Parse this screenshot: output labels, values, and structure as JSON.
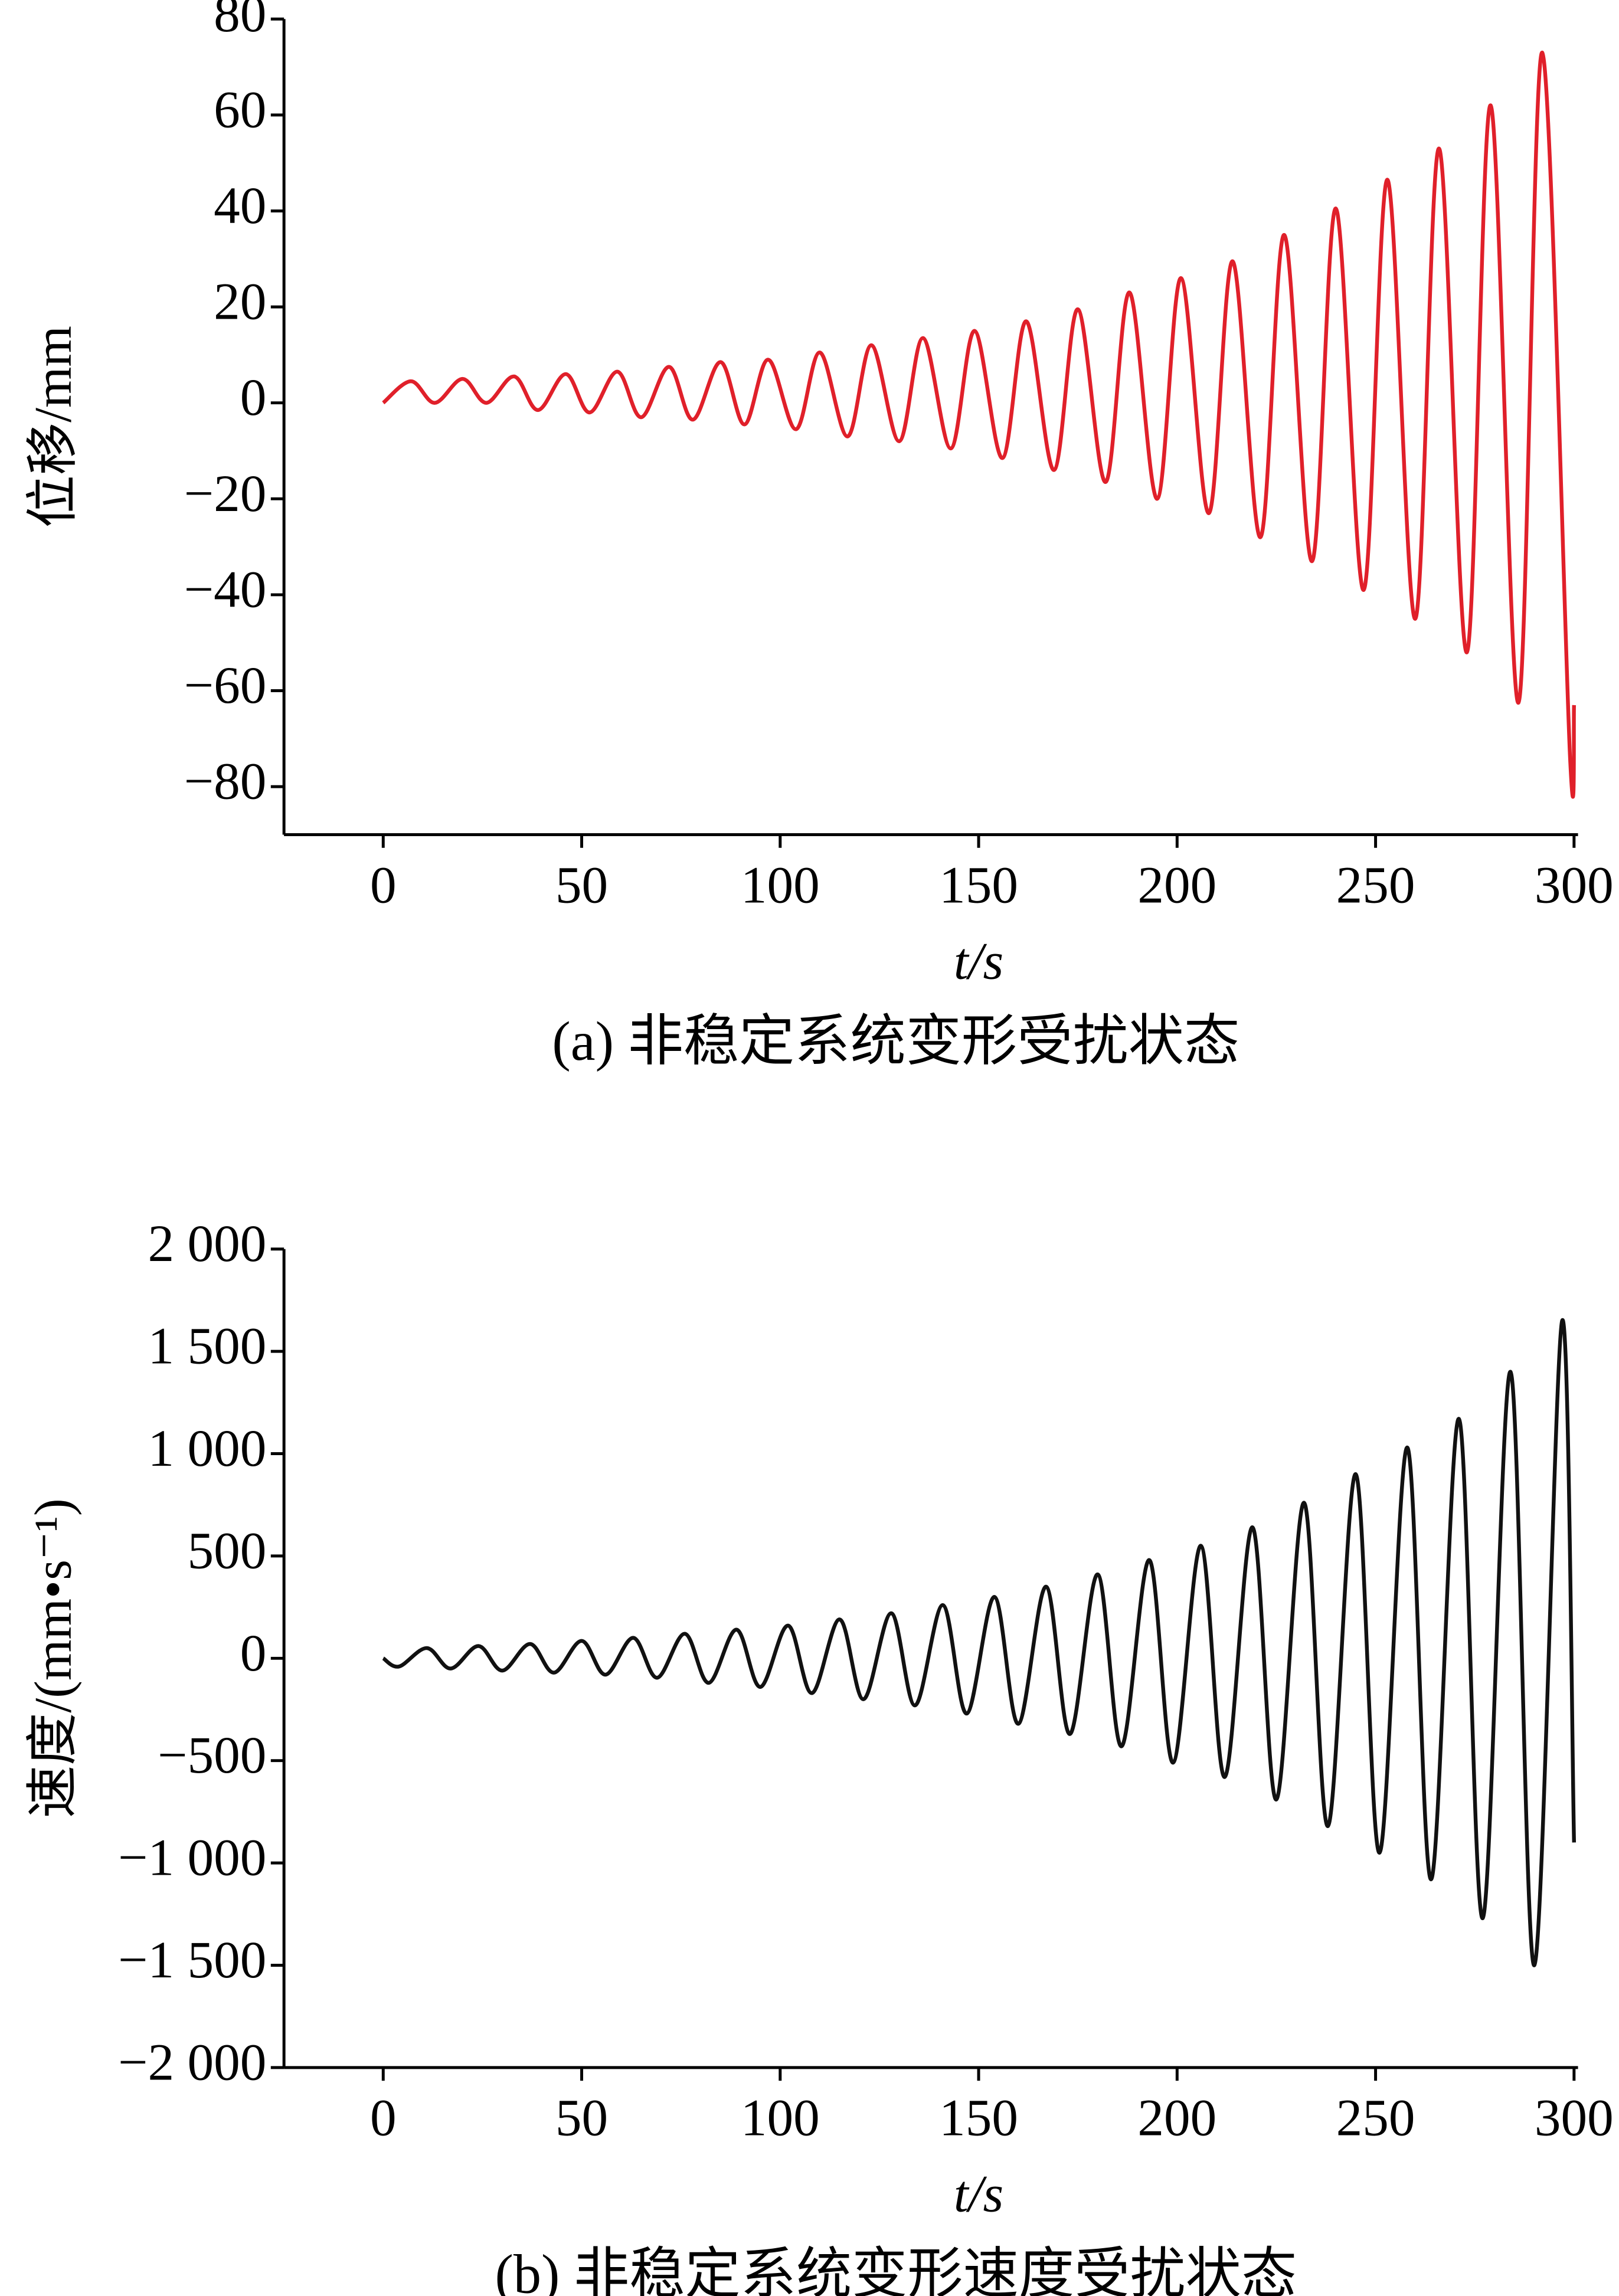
{
  "chart_data": [
    {
      "type": "line",
      "caption": "(a) 非稳定系统变形受扰状态",
      "xlabel": "t/s",
      "ylabel": "位移/mm",
      "xlim": [
        -25,
        301
      ],
      "xticks": [
        0,
        50,
        100,
        150,
        200,
        250,
        300
      ],
      "ylim": [
        -90,
        80
      ],
      "yticks": [
        {
          "value": -80,
          "label": "−80"
        },
        {
          "value": -60,
          "label": "−60"
        },
        {
          "value": -40,
          "label": "−40"
        },
        {
          "value": -20,
          "label": "−20"
        },
        0,
        20,
        40,
        60,
        80
      ],
      "series": [
        {
          "name": "位移",
          "color": "#e0202a",
          "x": [
            0,
            7,
            13,
            20,
            26,
            33,
            39,
            46,
            52,
            59,
            65,
            72,
            78,
            85,
            91,
            97,
            104,
            110,
            117,
            123,
            130,
            136,
            143,
            149,
            156,
            162,
            169,
            175,
            182,
            188,
            195,
            201,
            208,
            214,
            221,
            227,
            234,
            240,
            247,
            253,
            260,
            266,
            273,
            279,
            286,
            292,
            299,
            300
          ],
          "values": [
            0,
            4.5,
            0,
            5,
            0,
            5.5,
            -1.5,
            6,
            -2,
            6.5,
            -3,
            7.5,
            -3.5,
            8.5,
            -4.5,
            9,
            -5.5,
            10.5,
            -7,
            12,
            -8,
            13.5,
            -9.5,
            15,
            -11.5,
            17,
            -14,
            19.5,
            -16.5,
            23,
            -20,
            26,
            -23,
            29.5,
            -28,
            35,
            -33,
            40.5,
            -39,
            46.5,
            -45,
            53,
            -52,
            62,
            -62.5,
            73,
            -74,
            -63
          ]
        }
      ]
    },
    {
      "type": "line",
      "caption": "(b) 非稳定系统变形速度受扰状态",
      "xlabel": "t/s",
      "ylabel": "速度/(mm•s⁻¹)",
      "xlim": [
        -25,
        301
      ],
      "xticks": [
        0,
        50,
        100,
        150,
        200,
        250,
        300
      ],
      "ylim": [
        -2000,
        2000
      ],
      "yticks": [
        {
          "value": -2000,
          "label": "−2 000"
        },
        {
          "value": -1500,
          "label": "−1 500"
        },
        {
          "value": -1000,
          "label": "−1 000"
        },
        {
          "value": -500,
          "label": "−500"
        },
        0,
        500,
        {
          "value": 1000,
          "label": "1 000"
        },
        {
          "value": 1500,
          "label": "1 500"
        },
        {
          "value": 2000,
          "label": "2 000"
        }
      ],
      "series": [
        {
          "name": "速度",
          "color": "#111111",
          "x": [
            0,
            4,
            11,
            17,
            24,
            30,
            37,
            43,
            50,
            56,
            63,
            69,
            76,
            82,
            89,
            95,
            102,
            108,
            115,
            121,
            128,
            134,
            141,
            147,
            154,
            160,
            167,
            173,
            180,
            186,
            193,
            199,
            206,
            212,
            219,
            225,
            232,
            238,
            245,
            251,
            258,
            264,
            271,
            277,
            284,
            290,
            297,
            300
          ],
          "values": [
            0,
            -40,
            50,
            -50,
            60,
            -60,
            70,
            -70,
            85,
            -80,
            100,
            -95,
            120,
            -120,
            140,
            -140,
            160,
            -170,
            190,
            -200,
            220,
            -230,
            260,
            -270,
            300,
            -320,
            350,
            -370,
            410,
            -430,
            480,
            -510,
            550,
            -580,
            640,
            -690,
            760,
            -820,
            900,
            -950,
            1030,
            -1080,
            1170,
            -1270,
            1400,
            -1500,
            1650,
            -900
          ]
        }
      ]
    }
  ]
}
